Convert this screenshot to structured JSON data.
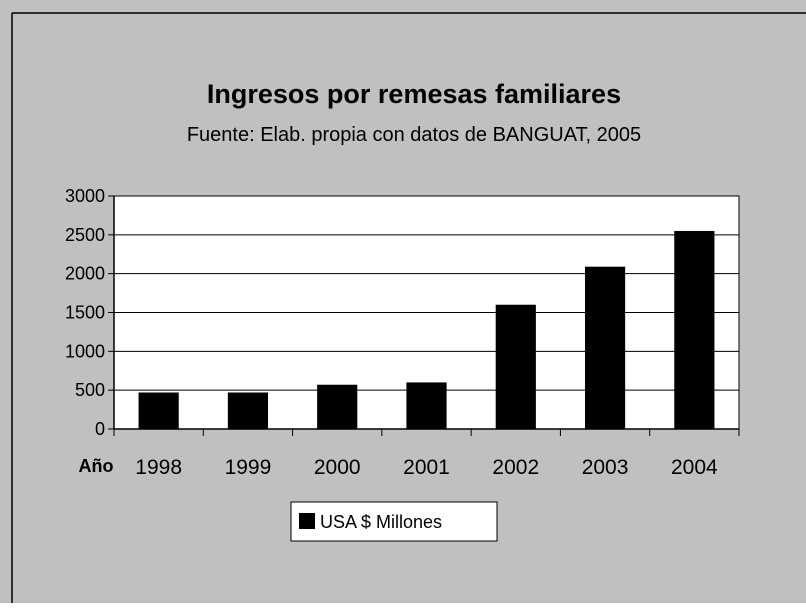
{
  "chart_data": {
    "type": "bar",
    "title": "Ingresos por remesas familiares",
    "subtitle": "Fuente: Elab. propia con datos de BANGUAT, 2005",
    "xlabel": "Año",
    "ylabel": "",
    "categories": [
      "1998",
      "1999",
      "2000",
      "2001",
      "2002",
      "2003",
      "2004"
    ],
    "series": [
      {
        "name": "USA $ Millones",
        "values": [
          470,
          470,
          570,
          600,
          1600,
          2090,
          2550
        ]
      }
    ],
    "ylim": [
      0,
      3000
    ],
    "yticks": [
      "0",
      "500",
      "1000",
      "1500",
      "2000",
      "2500",
      "3000"
    ],
    "grid": true,
    "legend_position": "bottom",
    "colors": {
      "background": "#c0c0c0",
      "plot_area": "#ffffff",
      "bar": "#000000"
    }
  }
}
